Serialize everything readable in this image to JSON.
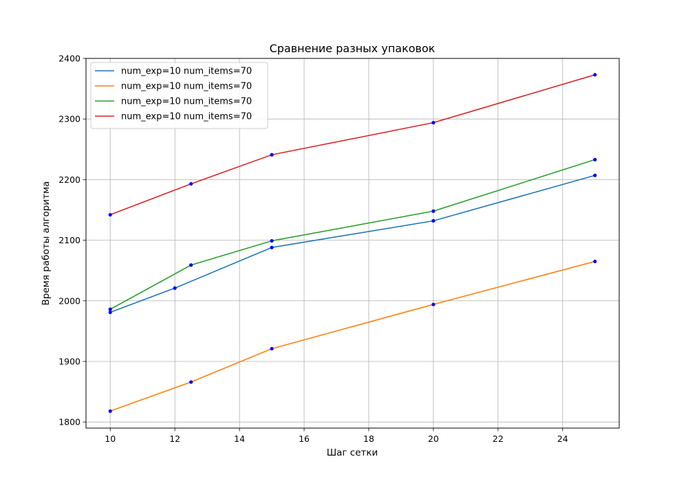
{
  "chart_data": {
    "type": "line",
    "title": "Сравнение разных упаковок",
    "xlabel": "Шаг сетки",
    "ylabel": "Время работы алгоритма",
    "xlim": [
      9.25,
      25.75
    ],
    "ylim": [
      1790,
      2400
    ],
    "xticks": [
      10,
      12,
      14,
      16,
      18,
      20,
      22,
      24
    ],
    "yticks": [
      1800,
      1900,
      2000,
      2100,
      2200,
      2300,
      2400
    ],
    "grid": true,
    "legend_position": "top-left",
    "marker_color": "#0000ff",
    "series": [
      {
        "name": "num_exp=10  num_items=70",
        "color": "#1f77b4",
        "x": [
          10,
          12,
          15,
          20,
          25
        ],
        "y": [
          1981,
          2021,
          2088,
          2132,
          2207
        ]
      },
      {
        "name": "num_exp=10  num_items=70",
        "color": "#ff7f0e",
        "x": [
          10,
          12.5,
          15,
          20,
          25
        ],
        "y": [
          1818,
          1866,
          1921,
          1994,
          2065
        ]
      },
      {
        "name": "num_exp=10  num_items=70",
        "color": "#2ca02c",
        "x": [
          10,
          12.5,
          15,
          20,
          25
        ],
        "y": [
          1986,
          2059,
          2099,
          2148,
          2233
        ]
      },
      {
        "name": "num_exp=10  num_items=70",
        "color": "#d62728",
        "x": [
          10,
          12.5,
          15,
          20,
          25
        ],
        "y": [
          2142,
          2193,
          2241,
          2294,
          2373
        ]
      }
    ]
  }
}
